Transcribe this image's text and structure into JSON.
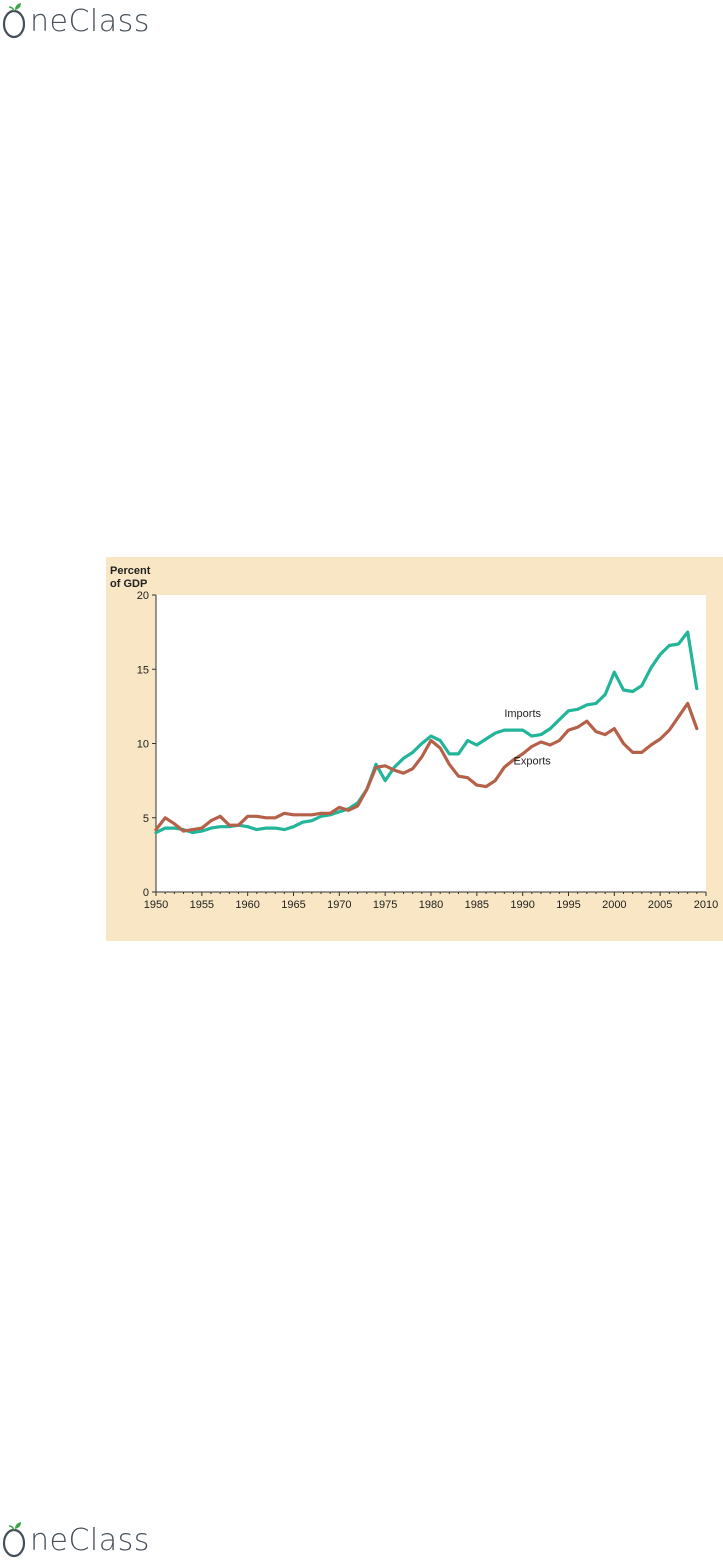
{
  "brand": {
    "logo_text_first": "O",
    "logo_text_rest": "neClass",
    "leaf_color": "#3aa64a",
    "text_color": "#454f59"
  },
  "chart_data": {
    "type": "line",
    "ylabel_line1": "Percent",
    "ylabel_line2": "of GDP",
    "xlim": [
      1950,
      2010
    ],
    "ylim": [
      0,
      20
    ],
    "x_ticks": [
      1950,
      1955,
      1960,
      1965,
      1970,
      1975,
      1980,
      1985,
      1990,
      1995,
      2000,
      2005,
      2010
    ],
    "y_ticks": [
      0,
      5,
      10,
      15,
      20
    ],
    "background": "#f8e6c4",
    "plot_background": "#ffffff",
    "series": [
      {
        "name": "Imports",
        "color": "#22b59a",
        "x": [
          1950,
          1951,
          1952,
          1953,
          1954,
          1955,
          1956,
          1957,
          1958,
          1959,
          1960,
          1961,
          1962,
          1963,
          1964,
          1965,
          1966,
          1967,
          1968,
          1969,
          1970,
          1971,
          1972,
          1973,
          1974,
          1975,
          1976,
          1977,
          1978,
          1979,
          1980,
          1981,
          1982,
          1983,
          1984,
          1985,
          1986,
          1987,
          1988,
          1989,
          1990,
          1991,
          1992,
          1993,
          1994,
          1995,
          1996,
          1997,
          1998,
          1999,
          2000,
          2001,
          2002,
          2003,
          2004,
          2005,
          2006,
          2007,
          2008,
          2009
        ],
        "values": [
          4.0,
          4.3,
          4.3,
          4.2,
          4.0,
          4.1,
          4.3,
          4.4,
          4.4,
          4.5,
          4.4,
          4.2,
          4.3,
          4.3,
          4.2,
          4.4,
          4.7,
          4.8,
          5.1,
          5.2,
          5.4,
          5.6,
          6.0,
          6.9,
          8.6,
          7.5,
          8.4,
          9.0,
          9.4,
          10.0,
          10.5,
          10.2,
          9.3,
          9.3,
          10.2,
          9.9,
          10.3,
          10.7,
          10.9,
          10.9,
          10.9,
          10.5,
          10.6,
          11.0,
          11.6,
          12.2,
          12.3,
          12.6,
          12.7,
          13.3,
          14.8,
          13.6,
          13.5,
          13.9,
          15.1,
          16.0,
          16.6,
          16.7,
          17.5,
          13.7
        ]
      },
      {
        "name": "Exports",
        "color": "#b5614a",
        "x": [
          1950,
          1951,
          1952,
          1953,
          1954,
          1955,
          1956,
          1957,
          1958,
          1959,
          1960,
          1961,
          1962,
          1963,
          1964,
          1965,
          1966,
          1967,
          1968,
          1969,
          1970,
          1971,
          1972,
          1973,
          1974,
          1975,
          1976,
          1977,
          1978,
          1979,
          1980,
          1981,
          1982,
          1983,
          1984,
          1985,
          1986,
          1987,
          1988,
          1989,
          1990,
          1991,
          1992,
          1993,
          1994,
          1995,
          1996,
          1997,
          1998,
          1999,
          2000,
          2001,
          2002,
          2003,
          2004,
          2005,
          2006,
          2007,
          2008,
          2009
        ],
        "values": [
          4.2,
          5.0,
          4.6,
          4.1,
          4.2,
          4.3,
          4.8,
          5.1,
          4.5,
          4.5,
          5.1,
          5.1,
          5.0,
          5.0,
          5.3,
          5.2,
          5.2,
          5.2,
          5.3,
          5.3,
          5.7,
          5.5,
          5.8,
          6.9,
          8.4,
          8.5,
          8.2,
          8.0,
          8.3,
          9.1,
          10.2,
          9.7,
          8.6,
          7.8,
          7.7,
          7.2,
          7.1,
          7.5,
          8.4,
          8.9,
          9.3,
          9.8,
          10.1,
          9.9,
          10.2,
          10.9,
          11.1,
          11.5,
          10.8,
          10.6,
          11.0,
          10.0,
          9.4,
          9.4,
          9.9,
          10.3,
          10.9,
          11.8,
          12.7,
          11.0
        ]
      }
    ],
    "annotations": [
      {
        "text": "Imports",
        "x": 1988,
        "y": 11.8
      },
      {
        "text": "Exports",
        "x": 1989,
        "y": 8.6
      }
    ]
  }
}
